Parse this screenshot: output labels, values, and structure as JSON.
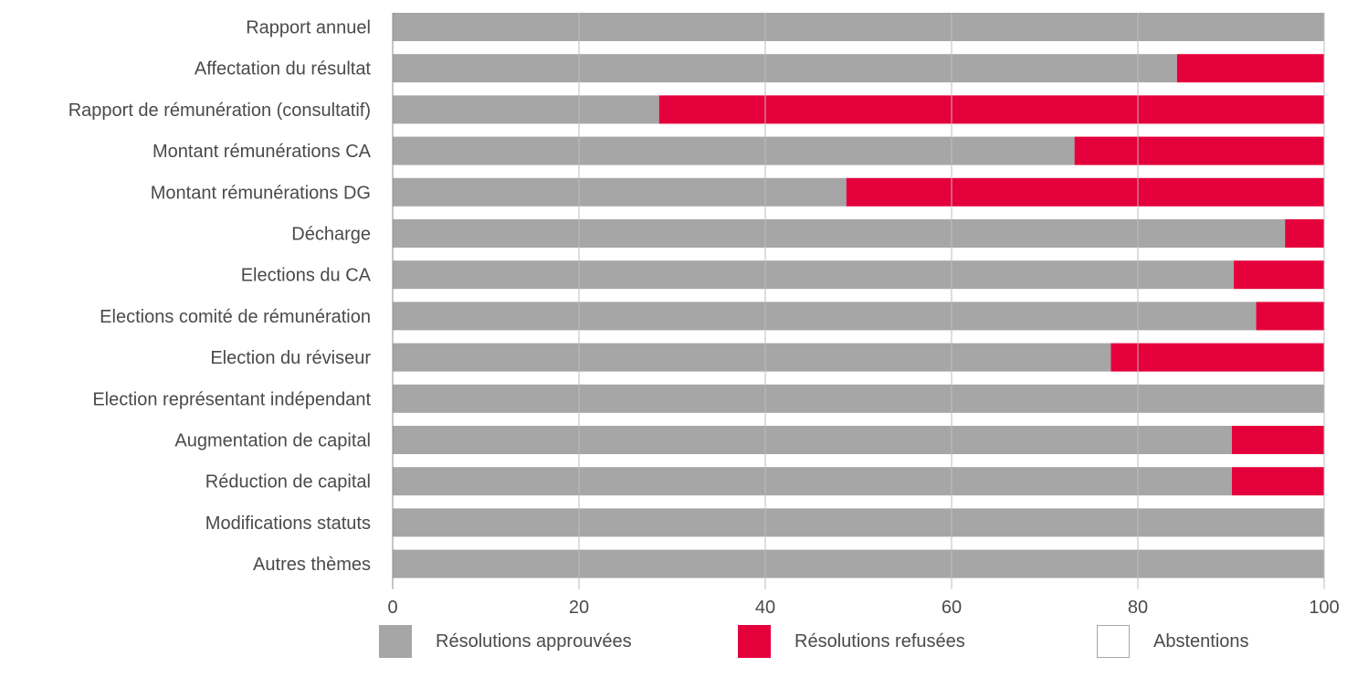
{
  "chart_data": {
    "type": "bar",
    "orientation": "horizontal",
    "stacked": true,
    "categories": [
      "Rapport annuel",
      "Affectation du résultat",
      "Rapport de rémunération (consultatif)",
      "Montant rémunérations CA",
      "Montant rémunérations DG",
      "Décharge",
      "Elections du CA",
      "Elections comité de rémunération",
      "Election du réviseur",
      "Election représentant indépendant",
      "Augmentation de capital",
      "Réduction de capital",
      "Modifications statuts",
      "Autres thèmes"
    ],
    "series": [
      {
        "name": "Résolutions approuvées",
        "color": "#a6a6a6",
        "values": [
          100,
          84.2,
          28.6,
          73.2,
          48.7,
          95.8,
          90.3,
          92.7,
          77.1,
          100,
          90.1,
          90.1,
          100,
          100
        ]
      },
      {
        "name": "Résolutions refusées",
        "color": "#e4003b",
        "values": [
          0,
          15.8,
          71.4,
          26.8,
          51.3,
          4.2,
          9.7,
          7.3,
          22.9,
          0,
          9.9,
          9.9,
          0,
          0
        ]
      },
      {
        "name": "Abstentions",
        "color": "#ffffff",
        "values": [
          0,
          0,
          0,
          0,
          0,
          0,
          0,
          0,
          0,
          0,
          0,
          0,
          0,
          0
        ]
      }
    ],
    "xlim": [
      0,
      100
    ],
    "xticks": [
      "0",
      "20",
      "40",
      "60",
      "80",
      "100"
    ],
    "title": "",
    "xlabel": "",
    "ylabel": "",
    "grid": true,
    "legend": "bottom"
  }
}
